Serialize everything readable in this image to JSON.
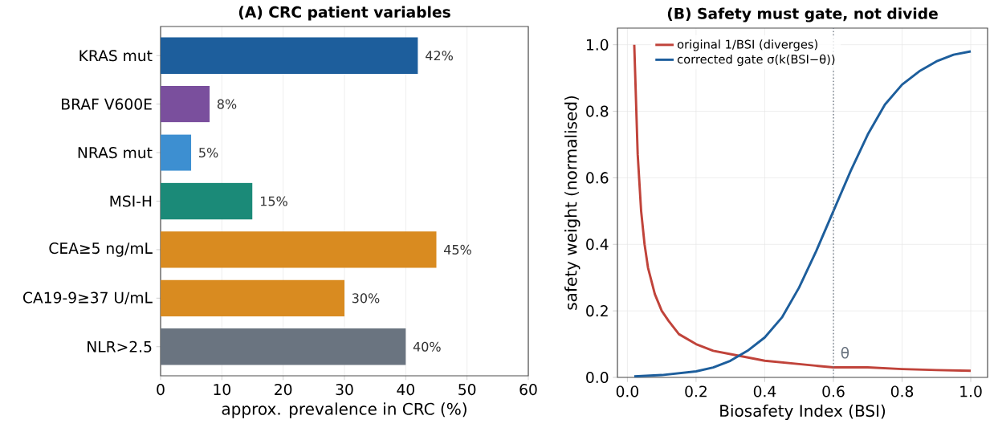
{
  "chart_data": [
    {
      "type": "bar",
      "orientation": "horizontal",
      "title": "**(A)  CRC patient variables**",
      "xlabel": "approx. prevalence in CRC (%)",
      "categories": [
        "KRAS mut",
        "BRAF V600E",
        "NRAS mut",
        "MSI-H",
        "CEA≥5 ng/mL",
        "CA19-9≥37 U/mL",
        "NLR>2.5"
      ],
      "values": [
        42,
        8,
        5,
        15,
        45,
        30,
        40
      ],
      "colors": [
        "#1d5e9c",
        "#7a4f9d",
        "#3d8fd1",
        "#1b8a78",
        "#d98b20",
        "#d98b20",
        "#6a7480"
      ],
      "value_labels": [
        "42%",
        "8%",
        "5%",
        "15%",
        "45%",
        "30%",
        "40%"
      ],
      "xlim": [
        0,
        60
      ],
      "xticks": [
        0,
        10,
        20,
        30,
        40,
        50,
        60
      ],
      "grid": "x"
    },
    {
      "type": "line",
      "title": "**(B)  Safety must gate, not divide**",
      "xlabel": "Biosafety Index (BSI)",
      "ylabel": "safety weight (normalised)",
      "series": [
        {
          "name": "original 1/BSI (diverges)",
          "color": "#c0433a",
          "x": [
            0.02,
            0.03,
            0.04,
            0.05,
            0.06,
            0.08,
            0.1,
            0.12,
            0.15,
            0.2,
            0.25,
            0.3,
            0.4,
            0.5,
            0.6,
            0.7,
            0.8,
            0.9,
            1.0
          ],
          "values": [
            1.0,
            0.67,
            0.5,
            0.4,
            0.33,
            0.25,
            0.2,
            0.17,
            0.13,
            0.1,
            0.08,
            0.07,
            0.05,
            0.04,
            0.03,
            0.03,
            0.025,
            0.022,
            0.02
          ]
        },
        {
          "name": "corrected gate σ(k(BSI−θ))",
          "color": "#1d5e9c",
          "x": [
            0.02,
            0.1,
            0.2,
            0.25,
            0.3,
            0.35,
            0.4,
            0.45,
            0.5,
            0.55,
            0.6,
            0.65,
            0.7,
            0.75,
            0.8,
            0.85,
            0.9,
            0.95,
            1.0
          ],
          "values": [
            0.003,
            0.007,
            0.018,
            0.03,
            0.05,
            0.08,
            0.12,
            0.18,
            0.27,
            0.38,
            0.5,
            0.62,
            0.73,
            0.82,
            0.88,
            0.92,
            0.95,
            0.97,
            0.98
          ]
        }
      ],
      "xlim": [
        -0.029,
        1.049
      ],
      "ylim": [
        0,
        1.05
      ],
      "xticks": [
        {
          "value": 0,
          "label": "0.0"
        },
        0.2,
        0.4,
        0.6,
        0.8,
        {
          "value": 1,
          "label": "1.0"
        }
      ],
      "yticks": [
        {
          "value": 0,
          "label": "0.0"
        },
        0.2,
        0.4,
        0.6,
        0.8,
        {
          "value": 1,
          "label": "1.0"
        }
      ],
      "ref_lines": [
        {
          "axis": "x",
          "value": 0.6,
          "label": "θ",
          "color": "#6a7480",
          "line_style": "dotted"
        }
      ],
      "grid": true,
      "legend": "top left"
    }
  ]
}
